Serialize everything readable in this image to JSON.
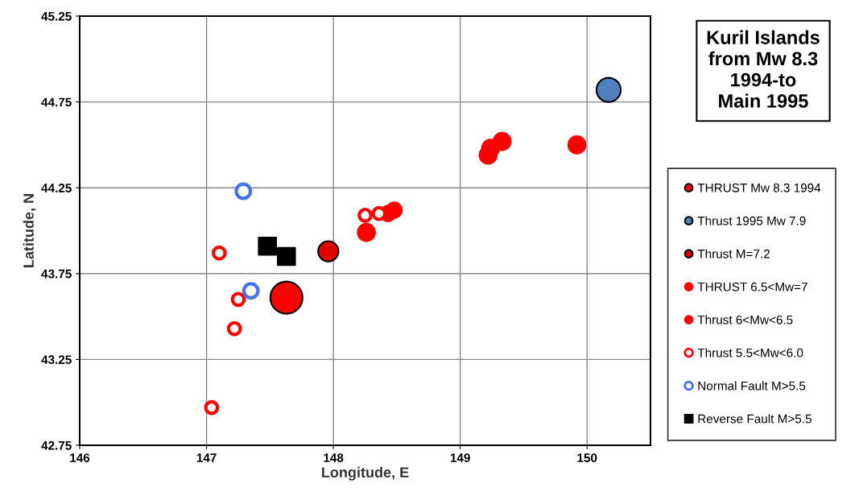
{
  "chart_data": {
    "type": "scatter",
    "title": "Kuril Islands\nfrom Mw 8.3\n1994-to\nMain 1995",
    "xlabel": "Longitude, E",
    "ylabel": "Latitude, N",
    "xlim": [
      146,
      150.5
    ],
    "xticks": [
      146,
      147,
      148,
      149,
      150
    ],
    "ylim": [
      42.75,
      45.25
    ],
    "yticks": [
      42.75,
      43.25,
      43.75,
      44.25,
      44.75,
      45.25
    ],
    "grid": true,
    "legend": "right",
    "series": [
      {
        "name": "THRUST Mw 8.3 1994",
        "color": "#ff0000",
        "marker": "circle",
        "x": [
          147.63
        ],
        "values": [
          43.61
        ]
      },
      {
        "name": "Thrust 1995 Mw 7.9",
        "color": "#4f81bd",
        "marker": "circle",
        "x": [
          150.17
        ],
        "values": [
          44.82
        ]
      },
      {
        "name": "Thrust M=7.2",
        "color": "#e00000",
        "marker": "circle",
        "x": [
          147.96
        ],
        "values": [
          43.88
        ]
      },
      {
        "name": "THRUST 6.5<Mw=7",
        "color": "#ff0000",
        "marker": "circle",
        "x": [
          148.26,
          149.33,
          149.22,
          149.92,
          149.24
        ],
        "values": [
          43.99,
          44.52,
          44.44,
          44.5,
          44.48
        ]
      },
      {
        "name": "Thrust 6<Mw<6.5",
        "color": "#ff0000",
        "marker": "circle",
        "x": [
          148.48,
          148.43
        ],
        "values": [
          44.12,
          44.1
        ]
      },
      {
        "name": "Thrust 5.5<Mw<6.0",
        "color": "#ff0000",
        "marker": "circle",
        "x": [
          148.25,
          148.36,
          147.1,
          147.25,
          147.22,
          147.04
        ],
        "values": [
          44.09,
          44.1,
          43.87,
          43.6,
          43.43,
          42.97
        ]
      },
      {
        "name": "Normal Fault M>5.5",
        "color": "#4472ee",
        "marker": "circle",
        "x": [
          147.29,
          147.35
        ],
        "values": [
          44.23,
          43.65
        ]
      },
      {
        "name": "Reverse Fault M>5.5",
        "color": "#000000",
        "marker": "square",
        "x": [
          147.48,
          147.63
        ],
        "values": [
          43.91,
          43.85
        ]
      }
    ]
  }
}
